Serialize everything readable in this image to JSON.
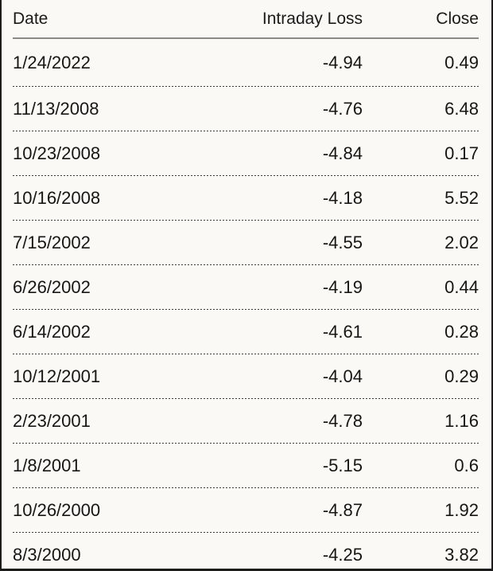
{
  "chart_data": {
    "type": "table",
    "title": "",
    "columns": [
      "Date",
      "Intraday Loss",
      "Close"
    ],
    "column_align": [
      "left",
      "right",
      "right"
    ],
    "rows": [
      [
        "1/24/2022",
        "-4.94",
        "0.49"
      ],
      [
        "11/13/2008",
        "-4.76",
        "6.48"
      ],
      [
        "10/23/2008",
        "-4.84",
        "0.17"
      ],
      [
        "10/16/2008",
        "-4.18",
        "5.52"
      ],
      [
        "7/15/2002",
        "-4.55",
        "2.02"
      ],
      [
        "6/26/2002",
        "-4.19",
        "0.44"
      ],
      [
        "6/14/2002",
        "-4.61",
        "0.28"
      ],
      [
        "10/12/2001",
        "-4.04",
        "0.29"
      ],
      [
        "2/23/2001",
        "-4.78",
        "1.16"
      ],
      [
        "1/8/2001",
        "-5.15",
        "0.6"
      ],
      [
        "10/26/2000",
        "-4.87",
        "1.92"
      ],
      [
        "8/3/2000",
        "-4.25",
        "3.82"
      ]
    ]
  },
  "colors": {
    "background": "#fbf9f6",
    "text": "#161616",
    "frame_border": "#1c1c1c",
    "header_rule": "#8a8a8a",
    "row_divider": "#3c3c3c"
  }
}
